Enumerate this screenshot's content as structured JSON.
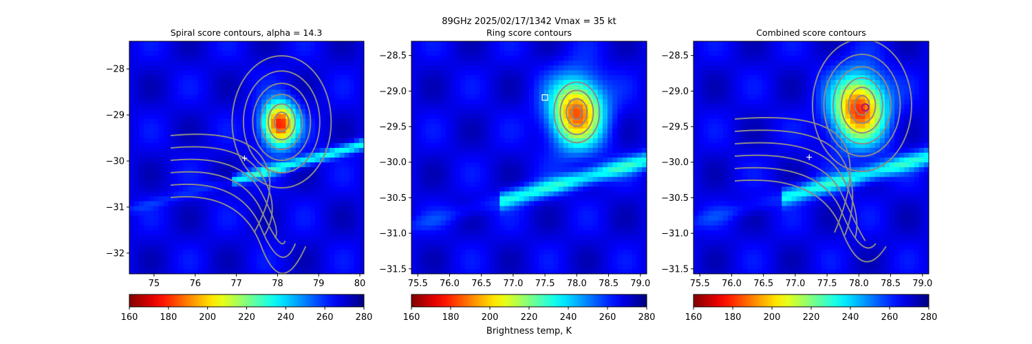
{
  "figure": {
    "suptitle_line1": "89GHz  2025/02/17/1342    Vmax = 35 kt",
    "colorbar_label": "Brightness temp, K"
  },
  "chart_data": [
    {
      "type": "heatmap",
      "title": "Spiral score contours, alpha = 14.3",
      "x_ticks": [
        "75",
        "76",
        "77",
        "78",
        "79",
        "80"
      ],
      "y_ticks": [
        "−28",
        "−29",
        "−30",
        "−31",
        "−32"
      ],
      "xlim": [
        74.4,
        80.1
      ],
      "ylim": [
        -32.45,
        -27.4
      ],
      "colorbar": {
        "ticks": [
          "160",
          "180",
          "200",
          "220",
          "240",
          "260",
          "280"
        ],
        "range": [
          160,
          280
        ],
        "cmap": "jet_r"
      },
      "markers": [
        {
          "kind": "plus",
          "x": 77.2,
          "y": -29.94
        }
      ],
      "warm_core": {
        "x": 78.05,
        "y": -29.2,
        "min_tb": 175
      },
      "contour_center": {
        "x": 78.1,
        "y": -29.15
      }
    },
    {
      "type": "heatmap",
      "title": "Ring score contours",
      "x_ticks": [
        "75.5",
        "76.0",
        "76.5",
        "77.0",
        "77.5",
        "78.0",
        "78.5",
        "79.0"
      ],
      "y_ticks": [
        "−28.5",
        "−29.0",
        "−29.5",
        "−30.0",
        "−30.5",
        "−31.0",
        "−31.5"
      ],
      "xlim": [
        75.4,
        79.1
      ],
      "ylim": [
        -31.57,
        -28.3
      ],
      "colorbar": {
        "ticks": [
          "160",
          "180",
          "200",
          "220",
          "240",
          "260",
          "280"
        ],
        "range": [
          160,
          280
        ],
        "cmap": "jet_r"
      },
      "markers": [
        {
          "kind": "square",
          "x": 77.5,
          "y": -29.09
        }
      ],
      "warm_core": {
        "x": 78.0,
        "y": -29.3,
        "min_tb": 185
      }
    },
    {
      "type": "heatmap",
      "title": "Combined score contours",
      "x_ticks": [
        "75.5",
        "76.0",
        "76.5",
        "77.0",
        "77.5",
        "78.0",
        "78.5",
        "79.0"
      ],
      "y_ticks": [
        "−28.5",
        "−29.0",
        "−29.5",
        "−30.0",
        "−30.5",
        "−31.0",
        "−31.5"
      ],
      "xlim": [
        75.4,
        79.1
      ],
      "ylim": [
        -31.57,
        -28.3
      ],
      "colorbar": {
        "ticks": [
          "160",
          "180",
          "200",
          "220",
          "240",
          "260",
          "280"
        ],
        "range": [
          160,
          280
        ],
        "cmap": "jet_r"
      },
      "markers": [
        {
          "kind": "plus",
          "x": 77.22,
          "y": -29.93
        },
        {
          "kind": "circle",
          "x": 78.1,
          "y": -29.23
        }
      ],
      "warm_core": {
        "x": 78.0,
        "y": -29.25,
        "min_tb": 180
      },
      "contour_center": {
        "x": 78.05,
        "y": -29.2
      }
    }
  ]
}
